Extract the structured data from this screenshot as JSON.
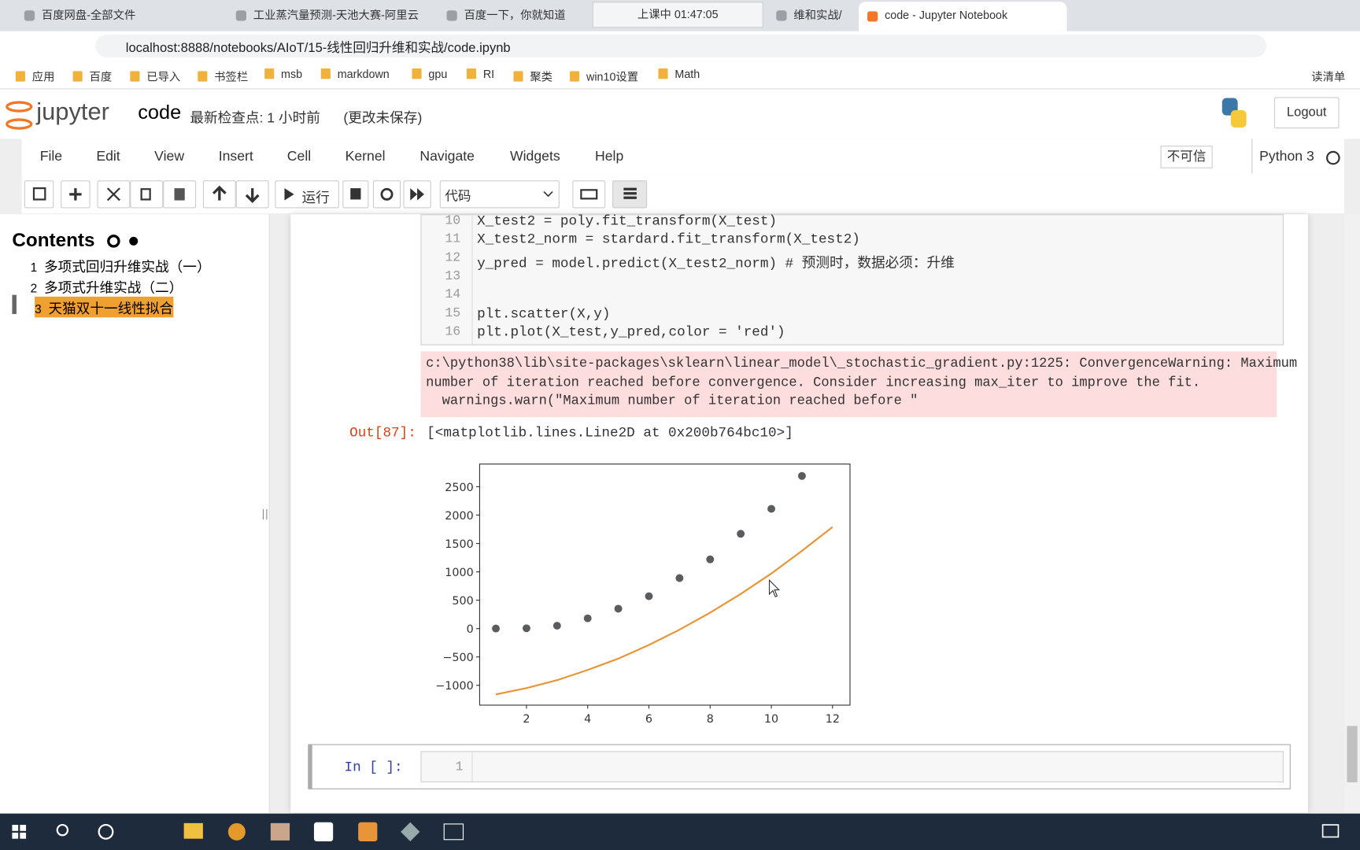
{
  "browser": {
    "tabs": [
      "百度网盘-全部文件",
      "工业蒸汽量预测-天池大赛-阿里云",
      "百度一下，你就知道",
      "维和实战/",
      "code - Jupyter Notebook"
    ],
    "recording_indicator": "上课中 01:47:05",
    "url": "localhost:8888/notebooks/AIoT/15-线性回归升维和实战/code.ipynb",
    "bookmarks": [
      "应用",
      "百度",
      "已导入",
      "书签栏",
      "msb",
      "markdown",
      "gpu",
      "RI",
      "聚类",
      "win10设置",
      "Math"
    ],
    "reading_list": "读清单"
  },
  "jupyter": {
    "logo": "jupyter",
    "notebook_name": "code",
    "checkpoint": "最新检查点: 1 小时前",
    "save_status": "(更改未保存)",
    "logout": "Logout",
    "menu": [
      "File",
      "Edit",
      "View",
      "Insert",
      "Cell",
      "Kernel",
      "Navigate",
      "Widgets",
      "Help"
    ],
    "trusted": "不可信",
    "kernel": "Python 3",
    "run_label": "运行",
    "cell_type": "代码"
  },
  "toc": {
    "title": "Contents",
    "items": [
      {
        "num": 1,
        "text": "多项式回归升维实战（一）"
      },
      {
        "num": 2,
        "text": "多项式升维实战（二）"
      },
      {
        "num": 3,
        "text": "天猫双十一线性拟合"
      }
    ]
  },
  "cell": {
    "lines": [
      {
        "num": 10,
        "text": "X_test2 = poly.fit_transform(X_test)"
      },
      {
        "num": 11,
        "text": "X_test2_norm = stardard.fit_transform(X_test2)"
      },
      {
        "num": 12,
        "text": "y_pred = model.predict(X_test2_norm) # 预测时，数据必须：升维"
      },
      {
        "num": 13
      },
      {
        "num": 14
      },
      {
        "num": 15,
        "text": "plt.scatter(X,y)"
      },
      {
        "num": 16,
        "text": "plt.plot(X_test,y_pred,color = 'red')"
      }
    ],
    "warning": [
      "c:\\python38\\lib\\site-packages\\sklearn\\linear_model\\_stochastic_gradient.py:1225: ConvergenceWarning: Maximum",
      "number of iteration reached before convergence. Consider increasing max_iter to improve the fit.",
      "  warnings.warn(\"Maximum number of iteration reached before \""
    ],
    "out_prompt": "Out[87]:",
    "out_text": "[<matplotlib.lines.Line2D at 0x200b764bc10>]"
  },
  "chart_data": {
    "type": "scatter",
    "series": [
      {
        "color": "#5a5c60",
        "mode": "markers",
        "x": [
          1,
          2,
          3,
          4,
          5,
          6,
          7,
          8,
          9,
          10,
          11
        ],
        "values": [
          0,
          5,
          50,
          180,
          350,
          570,
          890,
          1220,
          1670,
          2110,
          2690
        ]
      },
      {
        "color": "#e8953a",
        "mode": "line",
        "x": [
          1,
          2,
          3,
          4,
          5,
          6,
          7,
          8,
          9,
          10,
          11,
          12
        ],
        "values": [
          -1160,
          -1050,
          -910,
          -730,
          -530,
          -290,
          -20,
          280,
          610,
          970,
          1370,
          1790
        ]
      }
    ],
    "xlim": [
      0.47,
      12.57
    ],
    "ylim": [
      -1350,
      2900
    ],
    "xticks": [
      2,
      4,
      6,
      8,
      10,
      12
    ],
    "yticks": [
      {
        "value": -1000,
        "label": "−1000"
      },
      {
        "value": -500,
        "label": "−500"
      },
      0,
      500,
      1000,
      1500,
      2000,
      2500
    ]
  },
  "next_cell": {
    "prompt": "In [ ]:",
    "line_num": 1
  }
}
